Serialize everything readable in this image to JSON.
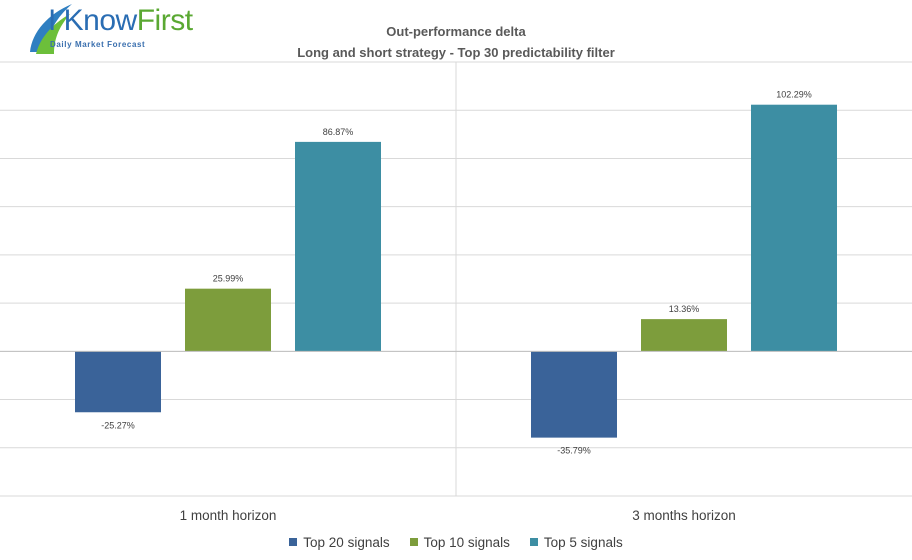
{
  "brand": {
    "name_part1": "I Know",
    "name_part2": "First",
    "tagline": "Daily Market Forecast"
  },
  "chart_data": {
    "type": "bar",
    "title": "Out-performance delta",
    "subtitle": "Long and short strategy - Top 30 predictability filter",
    "categories": [
      "1 month horizon",
      "3 months horizon"
    ],
    "series": [
      {
        "name": "Top 20 signals",
        "color": "#3a6399",
        "values": [
          -25.27,
          -35.79
        ],
        "labels": [
          "-25.27%",
          "-35.79%"
        ]
      },
      {
        "name": "Top 10 signals",
        "color": "#7d9d3c",
        "values": [
          25.99,
          13.36
        ],
        "labels": [
          "25.99%",
          "13.36%"
        ]
      },
      {
        "name": "Top 5 signals",
        "color": "#3d8ea3",
        "values": [
          86.87,
          102.29
        ],
        "labels": [
          "86.87%",
          "102.29%"
        ]
      }
    ],
    "ylim": [
      -60,
      120
    ],
    "grid_step": 20,
    "grid": true,
    "ytick_labels_visible": false,
    "legend_position": "bottom"
  }
}
